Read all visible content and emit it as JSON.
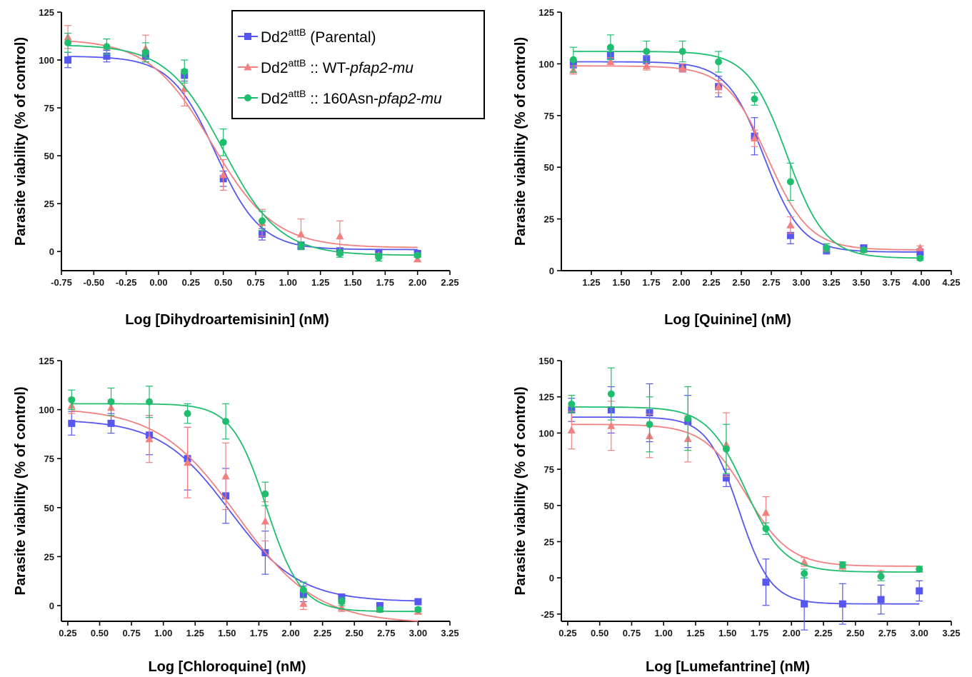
{
  "colors": {
    "parental": "#5656f0",
    "wt": "#f28080",
    "asn": "#1fbe6e",
    "axis": "#000000"
  },
  "legend": {
    "items": [
      {
        "series": "parental",
        "marker": "square",
        "base": "Dd2",
        "sup": "attB",
        "middle": " (Parental)",
        "italic": ""
      },
      {
        "series": "wt",
        "marker": "triangle",
        "base": "Dd2",
        "sup": "attB",
        "middle": " :: WT-",
        "italic": "pfap2-mu"
      },
      {
        "series": "asn",
        "marker": "circle",
        "base": "Dd2",
        "sup": "attB",
        "middle": " :: 160Asn-",
        "italic": "pfap2-mu"
      }
    ]
  },
  "chart_data": [
    {
      "type": "scatter",
      "xlabel": "Log [Dihydroartemisinin] (nM)",
      "ylabel": "Parasite viability (% of control)",
      "xlim": [
        -0.75,
        2.25
      ],
      "ylim": [
        -10,
        125
      ],
      "xticks": [
        "-0.75",
        "-0.50",
        "-0.25",
        "0.00",
        "0.25",
        "0.50",
        "0.75",
        "1.00",
        "1.25",
        "1.50",
        "1.75",
        "2.00",
        "2.25"
      ],
      "yticks": [
        "0",
        "25",
        "50",
        "75",
        "100",
        "125"
      ],
      "series": [
        {
          "key": "parental",
          "x": [
            -0.7,
            -0.4,
            -0.1,
            0.2,
            0.5,
            0.8,
            1.1,
            1.4,
            1.7,
            2.0
          ],
          "y": [
            100,
            102,
            102,
            92,
            38,
            9,
            3,
            0,
            -1,
            -1
          ],
          "err": [
            4,
            3,
            3,
            3,
            4,
            3,
            2,
            2,
            1,
            1
          ],
          "fit": {
            "top": 102,
            "bottom": 1,
            "ec50": 0.44,
            "hill": 2.5
          }
        },
        {
          "key": "wt",
          "x": [
            -0.7,
            -0.4,
            -0.1,
            0.2,
            0.5,
            0.8,
            1.1,
            1.4,
            1.7,
            2.0
          ],
          "y": [
            112,
            107,
            106,
            85,
            40,
            15,
            9,
            8,
            -2,
            -4
          ],
          "err": [
            6,
            4,
            7,
            9,
            8,
            7,
            8,
            8,
            1,
            1
          ],
          "fit": {
            "top": 111,
            "bottom": 2,
            "ec50": 0.41,
            "hill": 1.8
          }
        },
        {
          "key": "asn",
          "x": [
            -0.7,
            -0.4,
            -0.1,
            0.2,
            0.5,
            0.8,
            1.1,
            1.4,
            1.7,
            2.0
          ],
          "y": [
            109,
            107,
            104,
            94,
            57,
            16,
            3,
            -1,
            -3,
            -2
          ],
          "err": [
            5,
            4,
            5,
            6,
            7,
            5,
            2,
            2,
            2,
            1
          ],
          "fit": {
            "top": 108,
            "bottom": -2,
            "ec50": 0.5,
            "hill": 2.0
          }
        }
      ]
    },
    {
      "type": "scatter",
      "xlabel": "Log [Quinine] (nM)",
      "ylabel": "Parasite viability (% of control)",
      "xlim": [
        1.0,
        4.25
      ],
      "ylim": [
        0,
        125
      ],
      "xticks": [
        "1.25",
        "1.50",
        "1.75",
        "2.00",
        "2.25",
        "2.50",
        "2.75",
        "3.00",
        "3.25",
        "3.50",
        "3.75",
        "4.00",
        "4.25"
      ],
      "yticks": [
        "0",
        "25",
        "50",
        "75",
        "100",
        "125"
      ],
      "series": [
        {
          "key": "parental",
          "x": [
            1.1,
            1.41,
            1.71,
            2.01,
            2.31,
            2.61,
            2.91,
            3.21,
            3.52,
            3.99
          ],
          "y": [
            100,
            104,
            102,
            98,
            89,
            65,
            17,
            10,
            11,
            9
          ],
          "err": [
            2,
            3,
            2,
            2,
            5,
            9,
            4,
            2,
            1,
            1
          ],
          "fit": {
            "top": 101,
            "bottom": 9,
            "ec50": 2.69,
            "hill": 2.8
          }
        },
        {
          "key": "wt",
          "x": [
            1.1,
            1.41,
            1.71,
            2.01,
            2.31,
            2.61,
            2.91,
            3.21,
            3.52,
            3.99
          ],
          "y": [
            97,
            101,
            99,
            98,
            89,
            64,
            22,
            11,
            10,
            11
          ],
          "err": [
            2,
            2,
            2,
            2,
            3,
            4,
            4,
            2,
            1,
            1
          ],
          "fit": {
            "top": 99,
            "bottom": 10,
            "ec50": 2.72,
            "hill": 2.5
          }
        },
        {
          "key": "asn",
          "x": [
            1.1,
            1.41,
            1.71,
            2.01,
            2.31,
            2.61,
            2.91,
            3.21,
            3.52,
            3.99
          ],
          "y": [
            102,
            108,
            106,
            106,
            101,
            83,
            43,
            11,
            10,
            6
          ],
          "err": [
            6,
            6,
            5,
            5,
            5,
            3,
            9,
            2,
            1,
            1
          ],
          "fit": {
            "top": 106,
            "bottom": 6,
            "ec50": 2.88,
            "hill": 2.7
          }
        }
      ]
    },
    {
      "type": "scatter",
      "xlabel": "Log [Chloroquine] (nM)",
      "ylabel": "Parasite viability (% of control)",
      "xlim": [
        0.2,
        3.25
      ],
      "ylim": [
        -8,
        125
      ],
      "xticks": [
        "0.25",
        "0.50",
        "0.75",
        "1.00",
        "1.25",
        "1.50",
        "1.75",
        "2.00",
        "2.25",
        "2.50",
        "2.75",
        "3.00",
        "3.25"
      ],
      "yticks": [
        "0",
        "25",
        "50",
        "75",
        "100",
        "125"
      ],
      "series": [
        {
          "key": "parental",
          "x": [
            0.28,
            0.59,
            0.89,
            1.19,
            1.49,
            1.8,
            2.1,
            2.4,
            2.7,
            3.0
          ],
          "y": [
            93,
            93,
            87,
            75,
            56,
            27,
            6,
            4,
            0,
            2
          ],
          "err": [
            6,
            5,
            10,
            16,
            14,
            11,
            4,
            2,
            1,
            1
          ],
          "fit": {
            "top": 95,
            "bottom": 2,
            "ec50": 1.52,
            "hill": 1.6
          }
        },
        {
          "key": "wt",
          "x": [
            0.28,
            0.59,
            0.89,
            1.19,
            1.49,
            1.8,
            2.1,
            2.4,
            2.7,
            3.0
          ],
          "y": [
            102,
            101,
            85,
            73,
            66,
            43,
            1,
            -1,
            -2,
            -3
          ],
          "err": [
            4,
            4,
            12,
            18,
            17,
            10,
            3,
            2,
            1,
            1
          ],
          "fit": {
            "top": 101,
            "bottom": -9,
            "ec50": 1.58,
            "hill": 1.4
          }
        },
        {
          "key": "asn",
          "x": [
            0.28,
            0.59,
            0.89,
            1.19,
            1.49,
            1.8,
            2.1,
            2.4,
            2.7,
            3.0
          ],
          "y": [
            105,
            104,
            104,
            98,
            94,
            57,
            8,
            2,
            -2,
            -2
          ],
          "err": [
            5,
            7,
            8,
            5,
            9,
            6,
            4,
            2,
            1,
            1
          ],
          "fit": {
            "top": 103,
            "bottom": -3,
            "ec50": 1.81,
            "hill": 3.2
          }
        }
      ]
    },
    {
      "type": "scatter",
      "xlabel": "Log [Lumefantrine] (nM)",
      "ylabel": "Parasite viability (% of control)",
      "xlim": [
        0.2,
        3.25
      ],
      "ylim": [
        -30,
        150
      ],
      "xticks": [
        "0.25",
        "0.50",
        "0.75",
        "1.00",
        "1.25",
        "1.50",
        "1.75",
        "2.00",
        "2.25",
        "2.50",
        "2.75",
        "3.00",
        "3.25"
      ],
      "yticks": [
        "-25",
        "0",
        "25",
        "50",
        "75",
        "100",
        "125",
        "150"
      ],
      "series": [
        {
          "key": "parental",
          "x": [
            0.28,
            0.59,
            0.89,
            1.19,
            1.49,
            1.8,
            2.1,
            2.4,
            2.7,
            3.0
          ],
          "y": [
            116,
            116,
            114,
            108,
            69,
            -3,
            -18,
            -18,
            -15,
            -9
          ],
          "err": [
            8,
            16,
            20,
            18,
            6,
            16,
            18,
            14,
            10,
            7
          ],
          "fit": {
            "top": 111,
            "bottom": -18,
            "ec50": 1.59,
            "hill": 3.5
          }
        },
        {
          "key": "wt",
          "x": [
            0.28,
            0.59,
            0.89,
            1.19,
            1.49,
            1.8,
            2.1,
            2.4,
            2.7,
            3.0
          ],
          "y": [
            102,
            105,
            98,
            96,
            92,
            45,
            11,
            8,
            3,
            6
          ],
          "err": [
            13,
            17,
            15,
            16,
            22,
            11,
            3,
            3,
            2,
            2
          ],
          "fit": {
            "top": 106,
            "bottom": 8,
            "ec50": 1.65,
            "hill": 2.6
          }
        },
        {
          "key": "asn",
          "x": [
            0.28,
            0.59,
            0.89,
            1.19,
            1.49,
            1.8,
            2.1,
            2.4,
            2.7,
            3.0
          ],
          "y": [
            120,
            127,
            106,
            110,
            89,
            34,
            3,
            9,
            1,
            6
          ],
          "err": [
            6,
            18,
            19,
            22,
            17,
            4,
            3,
            2,
            3,
            2
          ],
          "fit": {
            "top": 118,
            "bottom": 4,
            "ec50": 1.64,
            "hill": 2.9
          }
        }
      ]
    }
  ]
}
